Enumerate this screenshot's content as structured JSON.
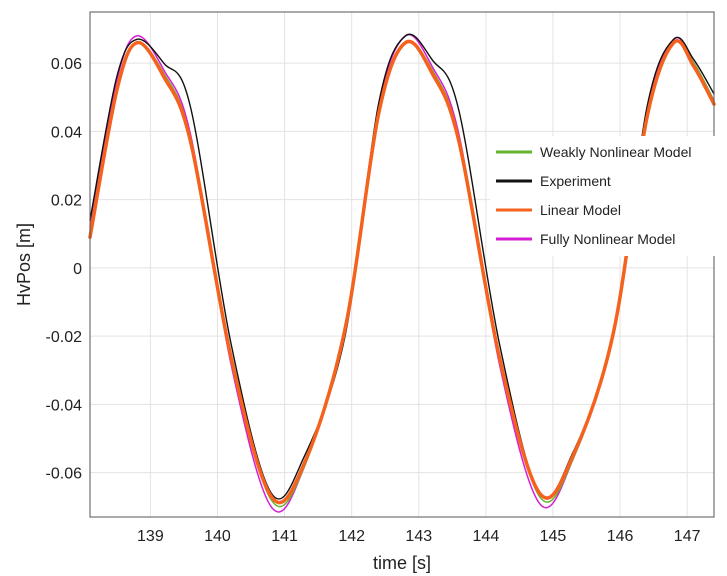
{
  "chart_data": {
    "type": "line",
    "title": "",
    "xlabel": "time [s]",
    "ylabel": "HvPos [m]",
    "xlim": [
      138.1,
      147.4
    ],
    "ylim": [
      -0.073,
      0.075
    ],
    "xticks": [
      139,
      140,
      141,
      142,
      143,
      144,
      145,
      146,
      147
    ],
    "xtick_labels": [
      "139",
      "140",
      "141",
      "142",
      "143",
      "144",
      "145",
      "146",
      "147"
    ],
    "yticks": [
      0.06,
      0.04,
      0.02,
      0,
      -0.02,
      -0.04,
      -0.06
    ],
    "ytick_labels": [
      "0.06",
      "0.04",
      "0.02",
      "0",
      "-0.02",
      "-0.04",
      "-0.06"
    ],
    "grid": true,
    "legend_position": "right",
    "series": [
      {
        "name": "Weakly Nonlinear Model",
        "color": "#66b32e",
        "x": [
          138.1,
          138.5,
          138.8,
          139.2,
          139.6,
          140.2,
          140.8,
          141.3,
          141.9,
          142.4,
          142.8,
          143.2,
          143.6,
          144.2,
          144.8,
          145.3,
          145.9,
          146.4,
          146.8,
          147.1,
          147.4
        ],
        "y": [
          0.011,
          0.053,
          0.066,
          0.057,
          0.038,
          -0.025,
          -0.068,
          -0.058,
          -0.017,
          0.046,
          0.066,
          0.058,
          0.038,
          -0.025,
          -0.067,
          -0.056,
          -0.018,
          0.045,
          0.066,
          0.06,
          0.049
        ]
      },
      {
        "name": "Experiment",
        "color": "#111111",
        "x": [
          138.1,
          138.5,
          138.8,
          139.2,
          139.6,
          140.2,
          140.8,
          141.3,
          141.9,
          142.4,
          142.8,
          143.2,
          143.6,
          144.2,
          144.8,
          145.3,
          145.9,
          146.4,
          146.8,
          147.1,
          147.4
        ],
        "y": [
          0.014,
          0.056,
          0.067,
          0.06,
          0.047,
          -0.022,
          -0.066,
          -0.055,
          -0.02,
          0.048,
          0.068,
          0.061,
          0.046,
          -0.022,
          -0.066,
          -0.054,
          -0.02,
          0.047,
          0.067,
          0.061,
          0.051
        ]
      },
      {
        "name": "Linear Model",
        "color": "#f4621e",
        "x": [
          138.1,
          138.5,
          138.8,
          139.2,
          139.6,
          140.2,
          140.8,
          141.3,
          141.9,
          142.4,
          142.8,
          143.2,
          143.6,
          144.2,
          144.8,
          145.3,
          145.9,
          146.4,
          146.8,
          147.1,
          147.4
        ],
        "y": [
          0.009,
          0.052,
          0.066,
          0.056,
          0.037,
          -0.026,
          -0.067,
          -0.057,
          -0.018,
          0.045,
          0.066,
          0.057,
          0.037,
          -0.026,
          -0.066,
          -0.055,
          -0.019,
          0.044,
          0.066,
          0.059,
          0.048
        ]
      },
      {
        "name": "Fully Nonlinear Model",
        "color": "#d61ed6",
        "x": [
          138.1,
          138.5,
          138.8,
          139.2,
          139.6,
          140.2,
          140.8,
          141.3,
          141.9,
          142.4,
          142.8,
          143.2,
          143.6,
          144.2,
          144.8,
          145.3,
          145.9,
          146.4,
          146.8,
          147.1,
          147.4
        ],
        "y": [
          0.012,
          0.055,
          0.068,
          0.058,
          0.039,
          -0.028,
          -0.07,
          -0.058,
          -0.017,
          0.047,
          0.068,
          0.059,
          0.039,
          -0.028,
          -0.069,
          -0.056,
          -0.018,
          0.046,
          0.067,
          0.06,
          0.049
        ]
      }
    ]
  }
}
